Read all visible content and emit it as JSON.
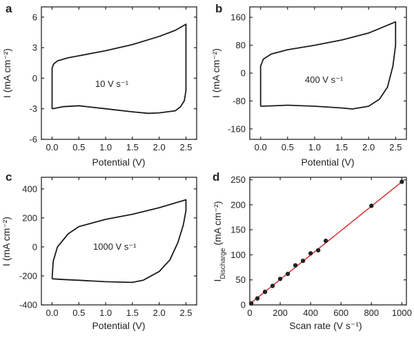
{
  "figure": {
    "panels": [
      {
        "letter": "a",
        "annotation": "10 V s⁻¹"
      },
      {
        "letter": "b",
        "annotation": "400 V s⁻¹"
      },
      {
        "letter": "c",
        "annotation": "1000 V s⁻¹"
      },
      {
        "letter": "d"
      }
    ]
  },
  "chart_data": [
    {
      "type": "line",
      "panel": "a",
      "xlabel": "Potential (V)",
      "ylabel": "I (mA cm⁻²)",
      "xlim": [
        -0.2,
        2.7
      ],
      "ylim": [
        -6,
        7
      ],
      "xticks": [
        0.0,
        0.5,
        1.0,
        1.5,
        2.0,
        2.5
      ],
      "xtick_labels": [
        "0.0",
        "0.5",
        "1.0",
        "1.5",
        "2.0",
        "2.5"
      ],
      "yticks": [
        -6,
        -3,
        0,
        3,
        6
      ],
      "ytick_labels": [
        "-6",
        "-3",
        "0",
        "3",
        "6"
      ],
      "annotation": "10 V s⁻¹",
      "series": [
        {
          "x": [
            0.0,
            0.0,
            0.03,
            0.1,
            0.3,
            0.5,
            1.0,
            1.5,
            2.0,
            2.3,
            2.5,
            2.5,
            2.47,
            2.4,
            2.3,
            2.0,
            1.8,
            1.5,
            1.0,
            0.5,
            0.2,
            0.0
          ],
          "y": [
            -3.0,
            1.0,
            1.4,
            1.7,
            2.0,
            2.2,
            2.7,
            3.3,
            4.1,
            4.7,
            5.3,
            -1.2,
            -2.2,
            -2.8,
            -3.2,
            -3.4,
            -3.45,
            -3.3,
            -3.0,
            -2.7,
            -2.8,
            -3.0
          ]
        }
      ]
    },
    {
      "type": "line",
      "panel": "b",
      "xlabel": "Potential (V)",
      "ylabel": "I (mA cm⁻²)",
      "xlim": [
        -0.2,
        2.7
      ],
      "ylim": [
        -190,
        190
      ],
      "xticks": [
        0.0,
        0.5,
        1.0,
        1.5,
        2.0,
        2.5
      ],
      "xtick_labels": [
        "0.0",
        "0.5",
        "1.0",
        "1.5",
        "2.0",
        "2.5"
      ],
      "yticks": [
        -160,
        -80,
        0,
        80,
        160
      ],
      "ytick_labels": [
        "-160",
        "-80",
        "0",
        "80",
        "160"
      ],
      "annotation": "400 V s⁻¹",
      "series": [
        {
          "x": [
            0.0,
            0.0,
            0.05,
            0.2,
            0.5,
            1.0,
            1.5,
            2.0,
            2.5,
            2.5,
            2.45,
            2.35,
            2.2,
            2.0,
            1.7,
            1.5,
            1.0,
            0.5,
            0.2,
            0.0
          ],
          "y": [
            -95,
            20,
            40,
            55,
            67,
            80,
            95,
            115,
            147,
            80,
            20,
            -40,
            -75,
            -95,
            -103,
            -100,
            -95,
            -92,
            -94,
            -95
          ]
        }
      ]
    },
    {
      "type": "line",
      "panel": "c",
      "xlabel": "Potential (V)",
      "ylabel": "I (mA cm⁻²)",
      "xlim": [
        -0.2,
        2.7
      ],
      "ylim": [
        -400,
        480
      ],
      "xticks": [
        0.0,
        0.5,
        1.0,
        1.5,
        2.0,
        2.5
      ],
      "xtick_labels": [
        "0.0",
        "0.5",
        "1.0",
        "1.5",
        "2.0",
        "2.5"
      ],
      "yticks": [
        -400,
        -200,
        0,
        200,
        400
      ],
      "ytick_labels": [
        "-400",
        "-200",
        "0",
        "200",
        "400"
      ],
      "annotation": "1000 V s⁻¹",
      "series": [
        {
          "x": [
            0.0,
            0.02,
            0.1,
            0.3,
            0.5,
            1.0,
            1.5,
            2.0,
            2.5,
            2.5,
            2.45,
            2.35,
            2.2,
            2.0,
            1.7,
            1.5,
            1.0,
            0.5,
            0.2,
            0.0
          ],
          "y": [
            -220,
            -100,
            0,
            90,
            140,
            190,
            225,
            270,
            325,
            250,
            150,
            30,
            -90,
            -170,
            -230,
            -245,
            -240,
            -230,
            -225,
            -220
          ]
        }
      ]
    },
    {
      "type": "scatter",
      "panel": "d",
      "xlabel": "Scan rate (V s⁻¹)",
      "ylabel": "I",
      "ylabel_subscript": "Discharge",
      "ylabel_units": "(mA cm⁻²)",
      "xlim": [
        0,
        1030
      ],
      "ylim": [
        0,
        255
      ],
      "xticks": [
        0,
        200,
        400,
        600,
        800,
        1000
      ],
      "xtick_labels": [
        "0",
        "200",
        "400",
        "600",
        "800",
        "1000"
      ],
      "yticks": [
        0,
        50,
        100,
        150,
        200,
        250
      ],
      "ytick_labels": [
        "0",
        "50",
        "100",
        "150",
        "200",
        "250"
      ],
      "series": [
        {
          "x": [
            10,
            50,
            100,
            150,
            200,
            250,
            300,
            350,
            400,
            450,
            500,
            800,
            1000
          ],
          "y": [
            3,
            13,
            26,
            38,
            52,
            62,
            79,
            88,
            103,
            109,
            128,
            198,
            246
          ]
        }
      ],
      "fit": {
        "x": [
          0,
          1000
        ],
        "y": [
          2,
          246
        ],
        "color": "#d62020"
      }
    }
  ]
}
